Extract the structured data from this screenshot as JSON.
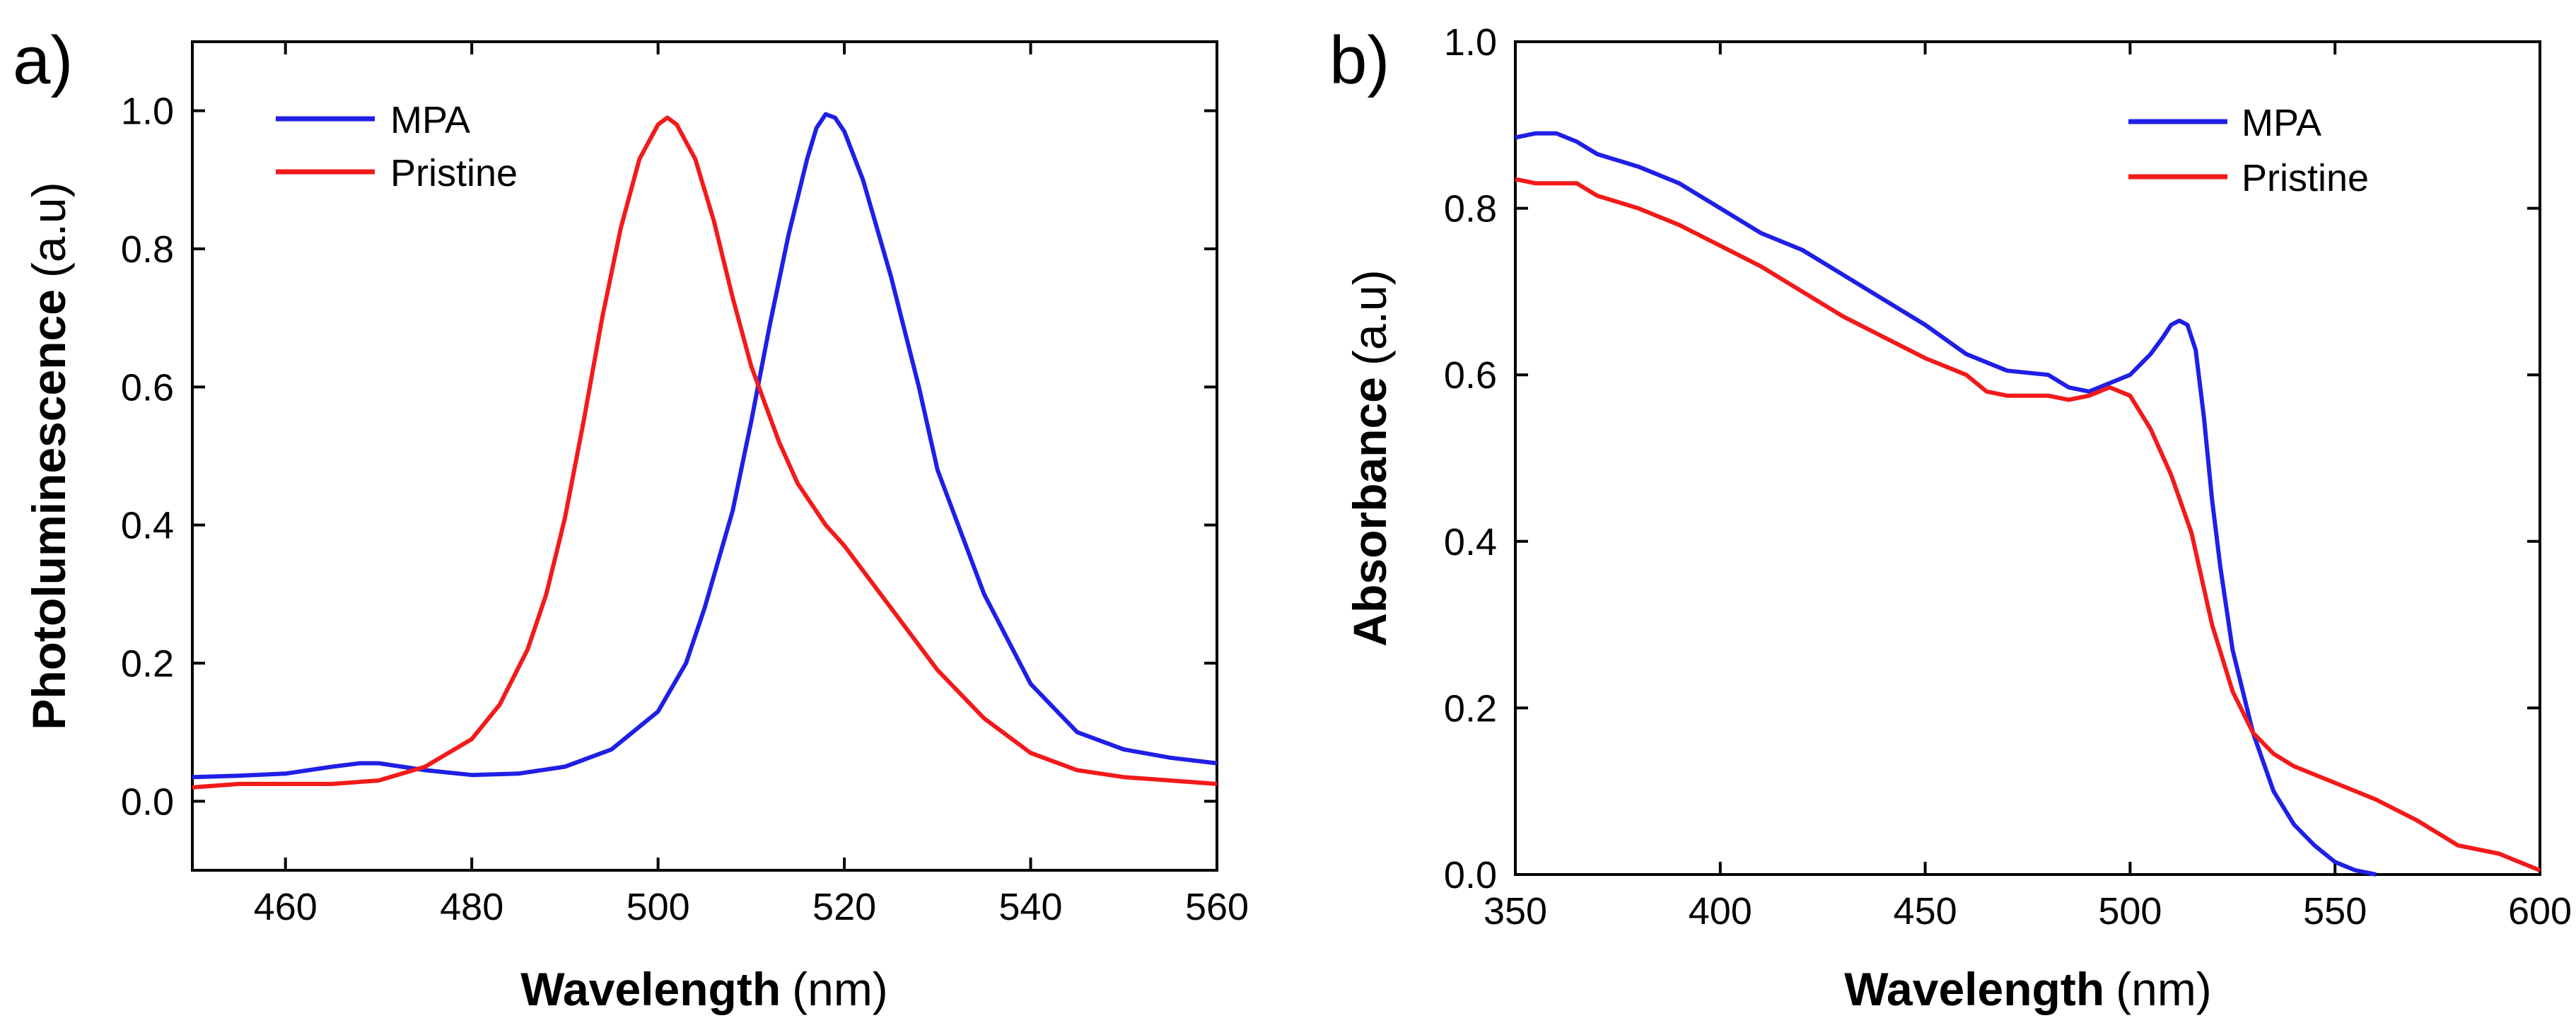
{
  "chart_data": [
    {
      "panel_label": "a)",
      "type": "line",
      "xlabel": "Wavelength",
      "xunit": "(nm)",
      "ylabel": "Photoluminescence",
      "yunit": "(a.u)",
      "xlim": [
        450,
        560
      ],
      "ylim": [
        -0.1,
        1.1
      ],
      "xticks": [
        460,
        480,
        500,
        520,
        540,
        560
      ],
      "yticks": [
        0.0,
        0.2,
        0.4,
        0.6,
        0.8,
        1.0
      ],
      "xtick_labels": [
        "460",
        "480",
        "500",
        "520",
        "540",
        "560"
      ],
      "ytick_labels": [
        "0.0",
        "0.2",
        "0.4",
        "0.6",
        "0.8",
        "1.0"
      ],
      "legend": {
        "position": "top-left",
        "entries": [
          "MPA",
          "Pristine"
        ]
      },
      "series": [
        {
          "name": "MPA",
          "color": "#1f1fe6",
          "x": [
            450,
            455,
            460,
            465,
            468,
            470,
            475,
            480,
            485,
            490,
            495,
            500,
            503,
            505,
            508,
            510,
            512,
            514,
            516,
            517,
            518,
            519,
            520,
            522,
            525,
            528,
            530,
            535,
            540,
            545,
            550,
            555,
            560
          ],
          "y": [
            0.035,
            0.037,
            0.04,
            0.05,
            0.055,
            0.055,
            0.045,
            0.038,
            0.04,
            0.05,
            0.075,
            0.13,
            0.2,
            0.28,
            0.42,
            0.55,
            0.69,
            0.82,
            0.93,
            0.975,
            0.995,
            0.99,
            0.97,
            0.9,
            0.76,
            0.6,
            0.48,
            0.3,
            0.17,
            0.1,
            0.075,
            0.063,
            0.055
          ]
        },
        {
          "name": "Pristine",
          "color": "#f21a1a",
          "x": [
            450,
            455,
            460,
            465,
            470,
            475,
            480,
            483,
            486,
            488,
            490,
            492,
            494,
            496,
            498,
            500,
            501,
            502,
            504,
            506,
            508,
            510,
            513,
            515,
            518,
            520,
            525,
            530,
            535,
            540,
            545,
            550,
            555,
            560
          ],
          "y": [
            0.02,
            0.025,
            0.025,
            0.025,
            0.03,
            0.05,
            0.09,
            0.14,
            0.22,
            0.3,
            0.41,
            0.55,
            0.7,
            0.83,
            0.93,
            0.98,
            0.99,
            0.98,
            0.93,
            0.84,
            0.73,
            0.63,
            0.52,
            0.46,
            0.4,
            0.37,
            0.28,
            0.19,
            0.12,
            0.07,
            0.045,
            0.035,
            0.03,
            0.025
          ]
        }
      ]
    },
    {
      "panel_label": "b)",
      "type": "line",
      "xlabel": "Wavelength",
      "xunit": "(nm)",
      "ylabel": "Absorbance",
      "yunit": "(a.u)",
      "xlim": [
        350,
        600
      ],
      "ylim": [
        0.0,
        1.0
      ],
      "xticks": [
        350,
        400,
        450,
        500,
        550,
        600
      ],
      "yticks": [
        0.0,
        0.2,
        0.4,
        0.6,
        0.8,
        1.0
      ],
      "xtick_labels": [
        "350",
        "400",
        "450",
        "500",
        "550",
        "600"
      ],
      "ytick_labels": [
        "0.0",
        "0.2",
        "0.4",
        "0.6",
        "0.8",
        "1.0"
      ],
      "legend": {
        "position": "top-right",
        "entries": [
          "MPA",
          "Pristine"
        ]
      },
      "series": [
        {
          "name": "MPA",
          "color": "#1f1fe6",
          "x": [
            350,
            355,
            360,
            365,
            370,
            380,
            390,
            400,
            410,
            420,
            430,
            440,
            450,
            460,
            470,
            480,
            485,
            490,
            495,
            500,
            505,
            508,
            510,
            512,
            514,
            516,
            518,
            520,
            522,
            525,
            530,
            535,
            540,
            545,
            550,
            555,
            560
          ],
          "y": [
            0.885,
            0.89,
            0.89,
            0.88,
            0.865,
            0.85,
            0.83,
            0.8,
            0.77,
            0.75,
            0.72,
            0.69,
            0.66,
            0.625,
            0.605,
            0.6,
            0.585,
            0.58,
            0.59,
            0.6,
            0.625,
            0.645,
            0.66,
            0.665,
            0.66,
            0.63,
            0.55,
            0.45,
            0.37,
            0.27,
            0.17,
            0.1,
            0.06,
            0.035,
            0.015,
            0.005,
            0.0
          ]
        },
        {
          "name": "Pristine",
          "color": "#f21a1a",
          "x": [
            350,
            355,
            360,
            365,
            370,
            380,
            390,
            400,
            410,
            420,
            430,
            440,
            450,
            460,
            465,
            470,
            480,
            485,
            490,
            495,
            500,
            505,
            510,
            515,
            520,
            525,
            530,
            535,
            540,
            550,
            560,
            570,
            575,
            580,
            590,
            595,
            600
          ],
          "y": [
            0.835,
            0.83,
            0.83,
            0.83,
            0.815,
            0.8,
            0.78,
            0.755,
            0.73,
            0.7,
            0.67,
            0.645,
            0.62,
            0.6,
            0.58,
            0.575,
            0.575,
            0.57,
            0.575,
            0.585,
            0.575,
            0.535,
            0.48,
            0.41,
            0.3,
            0.22,
            0.17,
            0.145,
            0.13,
            0.11,
            0.09,
            0.065,
            0.05,
            0.035,
            0.025,
            0.015,
            0.005
          ]
        }
      ]
    }
  ]
}
